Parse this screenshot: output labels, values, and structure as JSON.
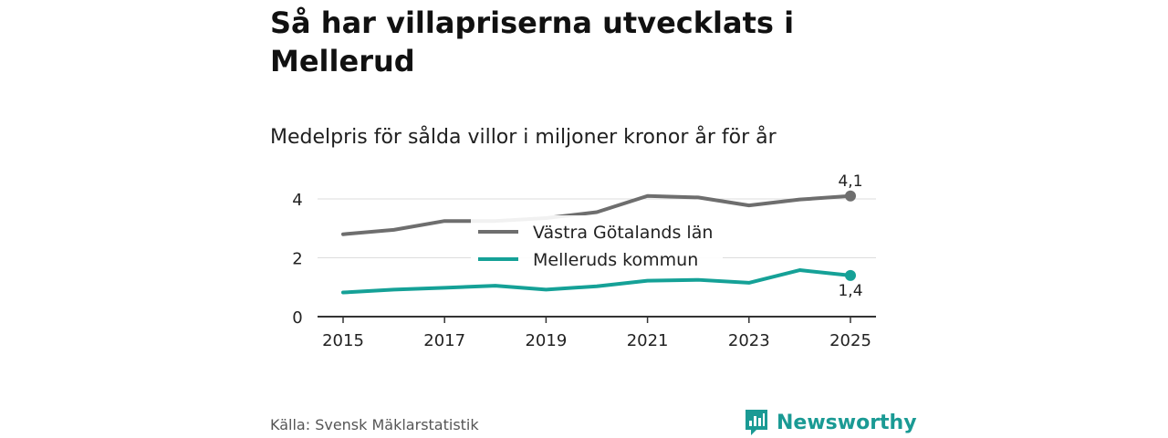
{
  "title": "Så har villapriserna utvecklats i Mellerud",
  "subtitle": "Medelpris för sålda villor i miljoner kronor år för år",
  "source": "Källa: Svensk Mäklarstatistik",
  "brand": "Newsworthy",
  "chart_data": {
    "type": "line",
    "x": [
      2015,
      2016,
      2017,
      2018,
      2019,
      2020,
      2021,
      2022,
      2023,
      2024,
      2025
    ],
    "xticks": [
      "2015",
      "2017",
      "2019",
      "2021",
      "2023",
      "2025"
    ],
    "yticks": [
      "0",
      "2",
      "4"
    ],
    "ylim": [
      0,
      4.4
    ],
    "series": [
      {
        "name": "Västra Götalands län",
        "color": "#6e6e6e",
        "values": [
          2.8,
          2.95,
          3.25,
          3.25,
          3.35,
          3.55,
          4.1,
          4.05,
          3.78,
          3.98,
          4.1
        ],
        "end_label": "4,1"
      },
      {
        "name": "Melleruds kommun",
        "color": "#15a197",
        "values": [
          0.82,
          0.92,
          0.98,
          1.05,
          0.92,
          1.03,
          1.22,
          1.25,
          1.15,
          1.58,
          1.4
        ],
        "end_label": "1,4"
      }
    ]
  }
}
